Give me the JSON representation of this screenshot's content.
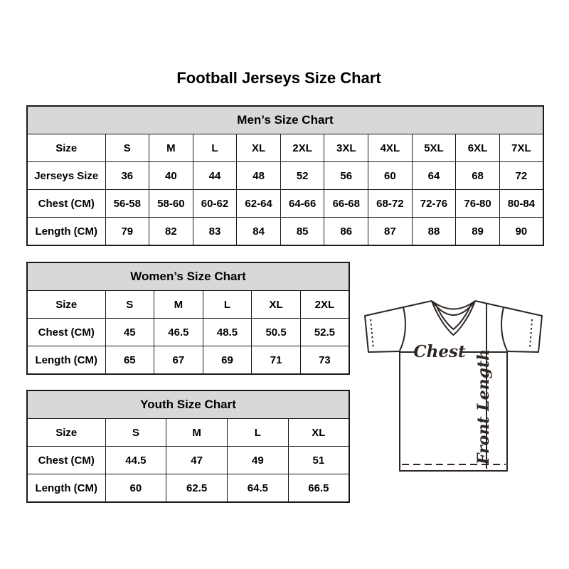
{
  "title": "Football Jerseys Size Chart",
  "tables": {
    "men": {
      "title": "Men’s Size Chart",
      "rows": [
        {
          "label": "Size",
          "values": [
            "S",
            "M",
            "L",
            "XL",
            "2XL",
            "3XL",
            "4XL",
            "5XL",
            "6XL",
            "7XL"
          ]
        },
        {
          "label": "Jerseys Size",
          "values": [
            "36",
            "40",
            "44",
            "48",
            "52",
            "56",
            "60",
            "64",
            "68",
            "72"
          ]
        },
        {
          "label": "Chest (CM)",
          "values": [
            "56-58",
            "58-60",
            "60-62",
            "62-64",
            "64-66",
            "66-68",
            "68-72",
            "72-76",
            "76-80",
            "80-84"
          ]
        },
        {
          "label": "Length (CM)",
          "values": [
            "79",
            "82",
            "83",
            "84",
            "85",
            "86",
            "87",
            "88",
            "89",
            "90"
          ]
        }
      ]
    },
    "women": {
      "title": "Women’s Size Chart",
      "rows": [
        {
          "label": "Size",
          "values": [
            "S",
            "M",
            "L",
            "XL",
            "2XL"
          ]
        },
        {
          "label": "Chest (CM)",
          "values": [
            "45",
            "46.5",
            "48.5",
            "50.5",
            "52.5"
          ]
        },
        {
          "label": "Length (CM)",
          "values": [
            "65",
            "67",
            "69",
            "71",
            "73"
          ]
        }
      ]
    },
    "youth": {
      "title": "Youth Size Chart",
      "rows": [
        {
          "label": "Size",
          "values": [
            "S",
            "M",
            "L",
            "XL"
          ]
        },
        {
          "label": "Chest (CM)",
          "values": [
            "44.5",
            "47",
            "49",
            "51"
          ]
        },
        {
          "label": "Length (CM)",
          "values": [
            "60",
            "62.5",
            "64.5",
            "66.5"
          ]
        }
      ]
    }
  },
  "diagram": {
    "chest_label": "Chest",
    "front_length_label": "Front Length"
  },
  "colors": {
    "header_bg": "#d8d8d8",
    "table_border": "#1a1a1a",
    "text": "#000000",
    "diagram_stroke": "#2e2623",
    "background": "#ffffff"
  }
}
